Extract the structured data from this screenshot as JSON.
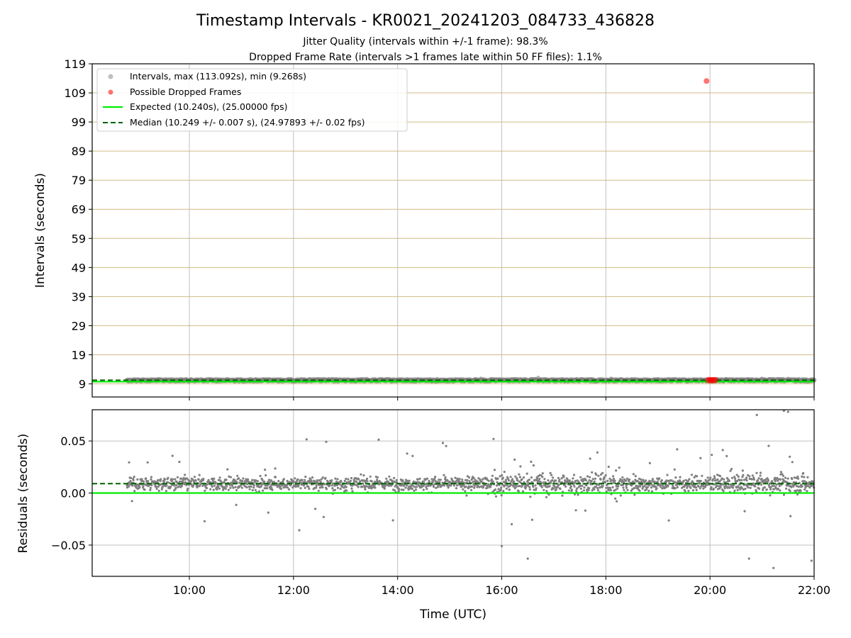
{
  "chart_data": [
    {
      "type": "scatter",
      "title": "Timestamp Intervals - KR0021_20241203_084733_436828",
      "subtitles": [
        "Jitter Quality (intervals within +/-1 frame): 98.3%",
        "Dropped Frame Rate (intervals >1 frames late within 50 FF files): 1.1%"
      ],
      "xlabel": "",
      "ylabel": "Intervals (seconds)",
      "xlim": [
        "08:08",
        "22:00"
      ],
      "ylim": [
        4.5,
        119
      ],
      "y_ticks": [
        "9",
        "19",
        "29",
        "39",
        "49",
        "59",
        "69",
        "79",
        "89",
        "99",
        "109",
        "119"
      ],
      "x_ticks": [
        "10:00",
        "12:00",
        "14:00",
        "16:00",
        "18:00",
        "20:00",
        "22:00"
      ],
      "grid": "on",
      "legend_position": "upper-left",
      "series": [
        {
          "name": "Intervals, max (113.092s), min (9.268s)",
          "color": "#808080",
          "x_range": [
            "08:48",
            "22:00"
          ],
          "y_typical": 10.249,
          "max": 113.092,
          "min": 9.268
        },
        {
          "name": "Possible Dropped Frames",
          "color": "#ff0000",
          "points": [
            {
              "x": "19:56",
              "y": 113.092
            },
            {
              "x": "19:58",
              "y": 10.3
            },
            {
              "x": "20:00",
              "y": 10.3
            },
            {
              "x": "20:02",
              "y": 10.3
            },
            {
              "x": "20:04",
              "y": 10.3
            },
            {
              "x": "20:06",
              "y": 10.3
            }
          ]
        },
        {
          "name": "Expected (10.240s), (25.00000 fps)",
          "color": "#00ee00",
          "line_style": "solid",
          "y": 10.24
        },
        {
          "name": "Median (10.249 +/- 0.007 s), (24.97893 +/- 0.02 fps)",
          "color": "#006400",
          "line_style": "dashed",
          "y": 10.249
        }
      ]
    },
    {
      "type": "scatter",
      "xlabel": "Time (UTC)",
      "ylabel": "Residuals (seconds)",
      "xlim": [
        "08:08",
        "22:00"
      ],
      "ylim": [
        -0.08,
        0.08
      ],
      "y_ticks": [
        "0.05",
        "0.00",
        "−0.05"
      ],
      "y_tick_values": [
        0.05,
        0.0,
        -0.05
      ],
      "x_ticks": [
        "10:00",
        "12:00",
        "14:00",
        "16:00",
        "18:00",
        "20:00",
        "22:00"
      ],
      "grid": "on",
      "series": [
        {
          "name": "residuals",
          "color": "#808080",
          "x_range": [
            "08:48",
            "22:00"
          ],
          "center": 0.009,
          "spread": 0.01,
          "max": 0.079,
          "min": -0.072
        },
        {
          "name": "expected",
          "color": "#00ee00",
          "line_style": "solid",
          "y": 0.0
        },
        {
          "name": "median",
          "color": "#006400",
          "line_style": "dashed",
          "y": 0.009
        }
      ]
    }
  ]
}
